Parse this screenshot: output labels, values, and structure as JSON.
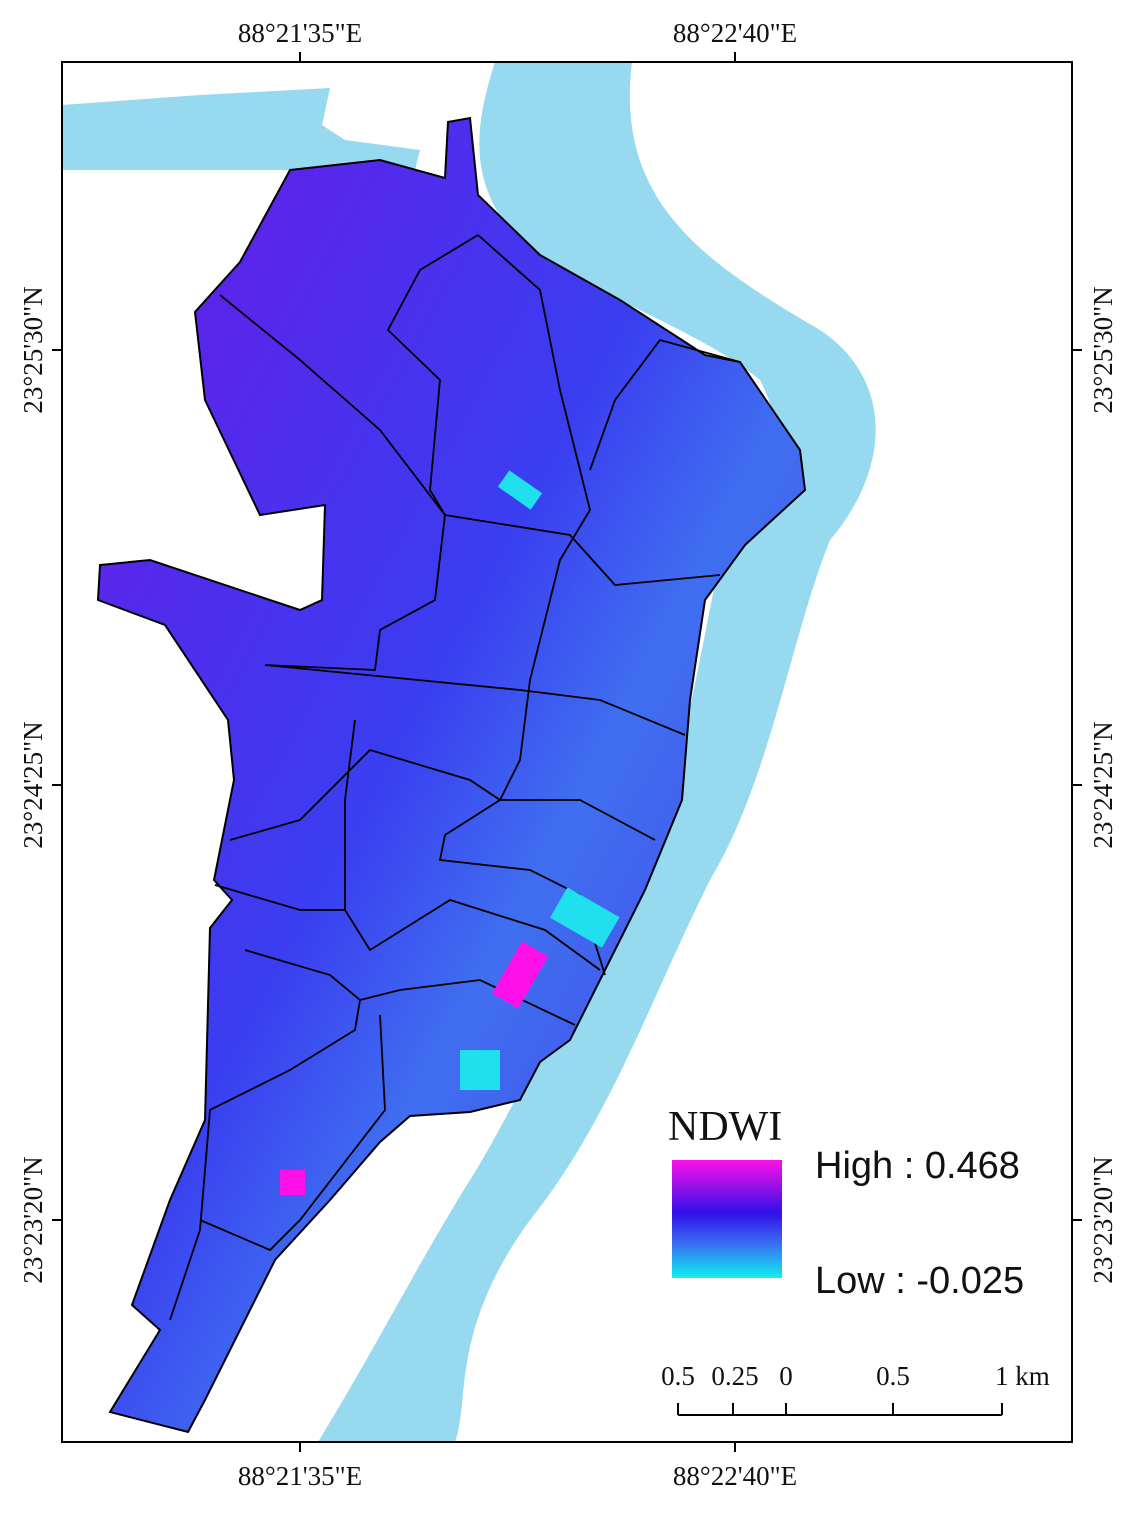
{
  "map": {
    "top_labels": [
      "88°21'35\"E",
      "88°22'40\"E"
    ],
    "bottom_labels": [
      "88°21'35\"E",
      "88°22'40\"E"
    ],
    "left_labels": [
      "23°25'30\"N",
      "23°24'25\"N",
      "23°23'20\"N"
    ],
    "right_labels": [
      "23°25'30\"N",
      "23°24'25\"N",
      "23°23'20\"N"
    ],
    "legend": {
      "title": "NDWI",
      "high": "High : 0.468",
      "low": "Low : -0.025"
    },
    "scale_bar": {
      "labels": [
        "0.5",
        "0.25",
        "0",
        "0.5",
        "1 km"
      ]
    }
  }
}
